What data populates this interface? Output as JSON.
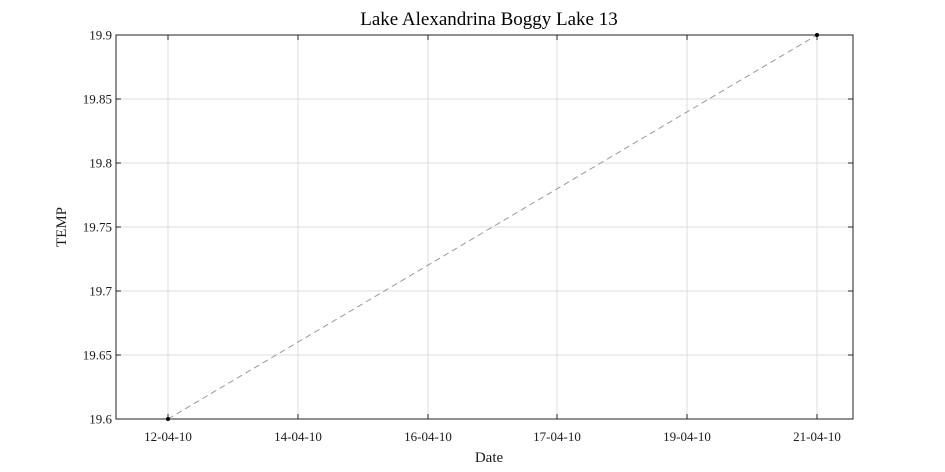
{
  "chart_data": {
    "type": "line",
    "title": "Lake Alexandrina Boggy Lake 13",
    "xlabel": "Date",
    "ylabel": "TEMP",
    "x_tick_labels": [
      "12-04-10",
      "14-04-10",
      "16-04-10",
      "17-04-10",
      "19-04-10",
      "21-04-10"
    ],
    "y_ticks": [
      19.6,
      19.65,
      19.7,
      19.75,
      19.8,
      19.85,
      19.9
    ],
    "y_tick_labels": [
      "19.6",
      "19.65",
      "19.7",
      "19.75",
      "19.8",
      "19.85",
      "19.9"
    ],
    "ylim": [
      19.6,
      19.9
    ],
    "grid": true,
    "series": [
      {
        "x": [
          "12-04-10",
          "21-04-10"
        ],
        "values": [
          19.6,
          19.9
        ],
        "color": "#999999",
        "line_style": "dashed",
        "marker_color": "#000000"
      }
    ]
  }
}
